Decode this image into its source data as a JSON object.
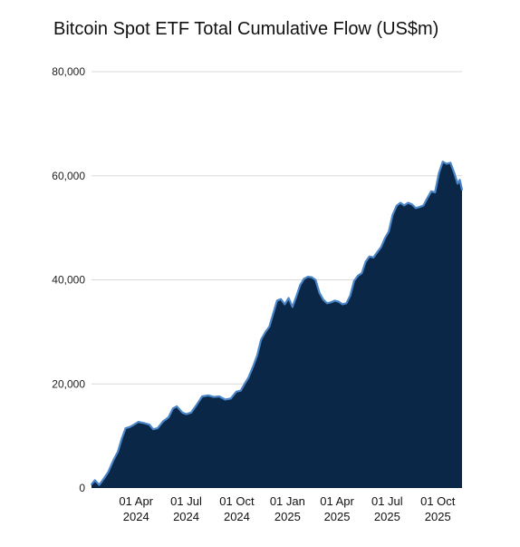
{
  "chart_data": {
    "type": "area",
    "title": "Bitcoin Spot ETF Total Cumulative Flow (US$m)",
    "xlabel": "",
    "ylabel": "",
    "ylim": [
      0,
      80000
    ],
    "y_ticks": [
      {
        "value": 0,
        "label": "0"
      },
      {
        "value": 20000,
        "label": "20,000"
      },
      {
        "value": 40000,
        "label": "40,000"
      },
      {
        "value": 60000,
        "label": "60,000"
      },
      {
        "value": 80000,
        "label": "80,000"
      }
    ],
    "x_range": [
      "2024-01-11",
      "2025-11-14"
    ],
    "x_ticks": [
      {
        "date": "2024-04-01",
        "line1": "01 Apr",
        "line2": "2024"
      },
      {
        "date": "2024-07-01",
        "line1": "01 Jul",
        "line2": "2024"
      },
      {
        "date": "2024-10-01",
        "line1": "01 Oct",
        "line2": "2024"
      },
      {
        "date": "2025-01-01",
        "line1": "01 Jan",
        "line2": "2025"
      },
      {
        "date": "2025-04-01",
        "line1": "01 Apr",
        "line2": "2025"
      },
      {
        "date": "2025-07-01",
        "line1": "01 Jul",
        "line2": "2025"
      },
      {
        "date": "2025-10-01",
        "line1": "01 Oct",
        "line2": "2025"
      }
    ],
    "grid": "horizontal",
    "legend": "none",
    "colors": {
      "fill": "#0a2747",
      "line": "#4a86c8",
      "grid": "#d9d9d9"
    },
    "series": [
      {
        "points": [
          [
            "2024-01-11",
            700
          ],
          [
            "2024-01-17",
            1500
          ],
          [
            "2024-01-25",
            600
          ],
          [
            "2024-02-01",
            1600
          ],
          [
            "2024-02-10",
            3000
          ],
          [
            "2024-02-20",
            5400
          ],
          [
            "2024-02-28",
            7000
          ],
          [
            "2024-03-06",
            9500
          ],
          [
            "2024-03-13",
            11500
          ],
          [
            "2024-03-20",
            11700
          ],
          [
            "2024-03-27",
            12100
          ],
          [
            "2024-04-05",
            12700
          ],
          [
            "2024-04-15",
            12500
          ],
          [
            "2024-04-25",
            12200
          ],
          [
            "2024-05-02",
            11300
          ],
          [
            "2024-05-10",
            11500
          ],
          [
            "2024-05-20",
            12800
          ],
          [
            "2024-05-30",
            13600
          ],
          [
            "2024-06-07",
            15300
          ],
          [
            "2024-06-14",
            15700
          ],
          [
            "2024-06-24",
            14500
          ],
          [
            "2024-07-01",
            14200
          ],
          [
            "2024-07-10",
            14500
          ],
          [
            "2024-07-20",
            16000
          ],
          [
            "2024-07-30",
            17600
          ],
          [
            "2024-08-10",
            17800
          ],
          [
            "2024-08-20",
            17500
          ],
          [
            "2024-08-30",
            17600
          ],
          [
            "2024-09-10",
            17000
          ],
          [
            "2024-09-20",
            17200
          ],
          [
            "2024-09-30",
            18500
          ],
          [
            "2024-10-08",
            18700
          ],
          [
            "2024-10-15",
            20000
          ],
          [
            "2024-10-22",
            21200
          ],
          [
            "2024-10-31",
            23500
          ],
          [
            "2024-11-07",
            25500
          ],
          [
            "2024-11-14",
            28500
          ],
          [
            "2024-11-22",
            30000
          ],
          [
            "2024-11-29",
            31000
          ],
          [
            "2024-12-06",
            33500
          ],
          [
            "2024-12-13",
            36000
          ],
          [
            "2024-12-20",
            36300
          ],
          [
            "2024-12-27",
            35300
          ],
          [
            "2025-01-03",
            36500
          ],
          [
            "2025-01-10",
            34800
          ],
          [
            "2025-01-17",
            36800
          ],
          [
            "2025-01-24",
            39000
          ],
          [
            "2025-01-31",
            40200
          ],
          [
            "2025-02-07",
            40600
          ],
          [
            "2025-02-14",
            40500
          ],
          [
            "2025-02-21",
            40000
          ],
          [
            "2025-02-28",
            37500
          ],
          [
            "2025-03-07",
            36200
          ],
          [
            "2025-03-14",
            35500
          ],
          [
            "2025-03-21",
            35700
          ],
          [
            "2025-03-28",
            36000
          ],
          [
            "2025-04-04",
            35800
          ],
          [
            "2025-04-11",
            35300
          ],
          [
            "2025-04-18",
            35500
          ],
          [
            "2025-04-25",
            37000
          ],
          [
            "2025-05-02",
            39800
          ],
          [
            "2025-05-09",
            40800
          ],
          [
            "2025-05-16",
            41300
          ],
          [
            "2025-05-23",
            43500
          ],
          [
            "2025-05-30",
            44500
          ],
          [
            "2025-06-06",
            44300
          ],
          [
            "2025-06-13",
            45300
          ],
          [
            "2025-06-20",
            46300
          ],
          [
            "2025-06-27",
            48000
          ],
          [
            "2025-07-04",
            49300
          ],
          [
            "2025-07-11",
            52500
          ],
          [
            "2025-07-18",
            54200
          ],
          [
            "2025-07-25",
            54800
          ],
          [
            "2025-08-01",
            54300
          ],
          [
            "2025-08-08",
            54800
          ],
          [
            "2025-08-15",
            54500
          ],
          [
            "2025-08-22",
            53800
          ],
          [
            "2025-08-29",
            54000
          ],
          [
            "2025-09-05",
            54300
          ],
          [
            "2025-09-12",
            55700
          ],
          [
            "2025-09-19",
            57000
          ],
          [
            "2025-09-26",
            56800
          ],
          [
            "2025-10-03",
            60500
          ],
          [
            "2025-10-10",
            62700
          ],
          [
            "2025-10-17",
            62300
          ],
          [
            "2025-10-24",
            62500
          ],
          [
            "2025-10-31",
            60500
          ],
          [
            "2025-11-06",
            58500
          ],
          [
            "2025-11-10",
            59200
          ],
          [
            "2025-11-14",
            57300
          ]
        ]
      }
    ]
  }
}
